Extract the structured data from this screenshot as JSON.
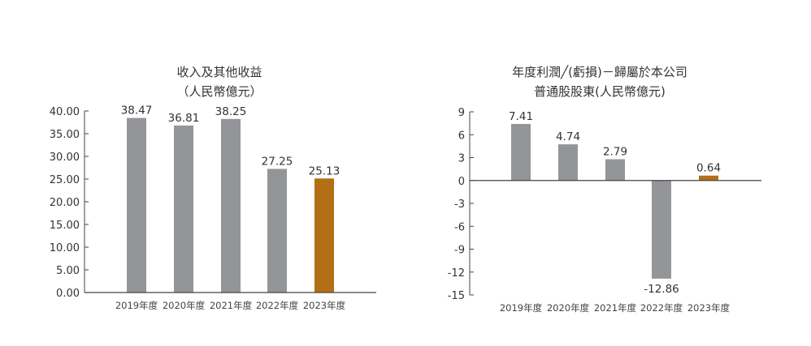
{
  "chart_data": [
    {
      "type": "bar",
      "title": [
        "收入及其他收益",
        "（人民幣億元）"
      ],
      "categories": [
        "2019年度",
        "2020年度",
        "2021年度",
        "2022年度",
        "2023年度"
      ],
      "values": [
        38.47,
        36.81,
        38.25,
        27.25,
        25.13
      ],
      "labels": [
        "38.47",
        "36.81",
        "38.25",
        "27.25",
        "25.13"
      ],
      "yticks": [
        "0.00",
        "5.00",
        "10.00",
        "15.00",
        "20.00",
        "25.00",
        "30.00",
        "35.00",
        "40.00"
      ],
      "ylim": [
        0,
        40
      ],
      "grid": false,
      "colors": [
        "#939598",
        "#939598",
        "#939598",
        "#939598",
        "#b36f15"
      ]
    },
    {
      "type": "bar",
      "title": [
        "年度利潤╱(虧損)－歸屬於本公司",
        "普通股股東(人民幣億元)"
      ],
      "categories": [
        "2019年度",
        "2020年度",
        "2021年度",
        "2022年度",
        "2023年度"
      ],
      "values": [
        7.41,
        4.74,
        2.79,
        -12.86,
        0.64
      ],
      "labels": [
        "7.41",
        "4.74",
        "2.79",
        "-12.86",
        "0.64"
      ],
      "yticks": [
        "-15",
        "-12",
        "-9",
        "-6",
        "-3",
        "0",
        "3",
        "6",
        "9"
      ],
      "ylim": [
        -15,
        9
      ],
      "grid": false,
      "colors": [
        "#939598",
        "#939598",
        "#939598",
        "#939598",
        "#b36f15"
      ]
    }
  ]
}
